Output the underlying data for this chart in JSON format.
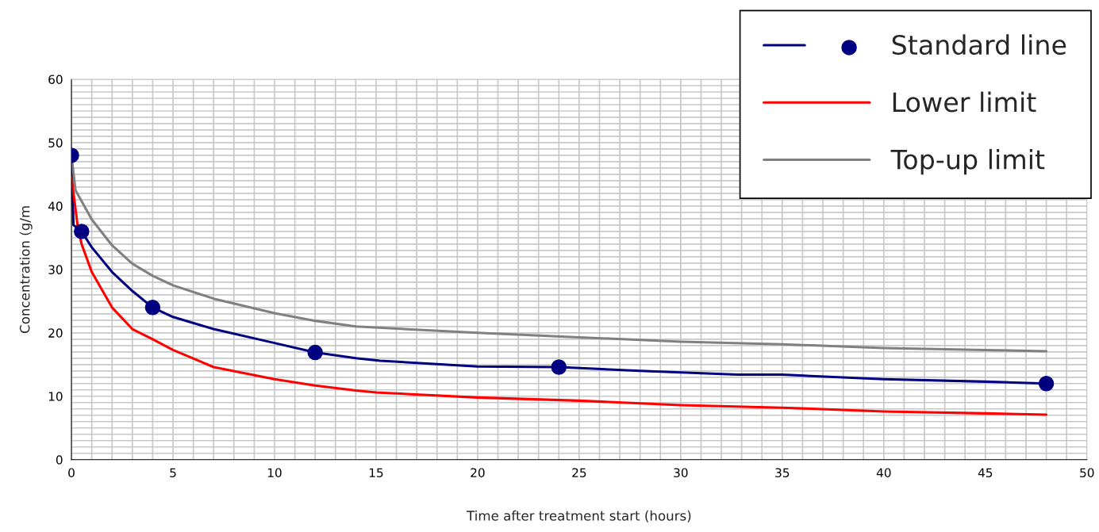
{
  "chart_data": {
    "type": "line",
    "xlabel": "Time after treatment start (hours)",
    "ylabel": "Concentration (g/m",
    "xlim": [
      0,
      50
    ],
    "xticks": [
      0,
      5,
      10,
      15,
      20,
      25,
      30,
      35,
      40,
      45,
      50
    ],
    "ylim": [
      0,
      60
    ],
    "yticks": [
      0,
      10,
      20,
      30,
      40,
      50,
      60
    ],
    "grid": true,
    "legend": "top right",
    "series": [
      {
        "name": "Standard line",
        "color": "#000080",
        "marker": "none",
        "x": [
          0,
          0.1,
          0.5,
          1,
          2,
          3,
          4,
          5,
          7,
          10,
          12,
          14,
          15.2,
          20,
          24,
          28,
          32.8,
          35,
          40,
          45,
          48
        ],
        "values": [
          48,
          37,
          36,
          33.5,
          29.6,
          26.6,
          24,
          22.5,
          20.6,
          18.4,
          16.9,
          16,
          15.6,
          14.7,
          14.6,
          14,
          13.4,
          13.4,
          12.7,
          12.3,
          12
        ]
      },
      {
        "type": "scatter",
        "color": "#000080",
        "marker": "circle",
        "x": [
          0,
          0.5,
          4,
          12,
          24,
          48
        ],
        "values": [
          48,
          36,
          24,
          16.9,
          14.6,
          12
        ]
      },
      {
        "name": "Lower limit",
        "color": "#ff0000",
        "marker": "none",
        "x": [
          0,
          0.3,
          0.5,
          1,
          2,
          3,
          4,
          5,
          7,
          10,
          12,
          14,
          15,
          20,
          25,
          30,
          35,
          40,
          45,
          48
        ],
        "values": [
          44.6,
          37,
          34,
          29.6,
          24,
          20.6,
          19,
          17.3,
          14.6,
          12.7,
          11.7,
          10.9,
          10.6,
          9.8,
          9.3,
          8.6,
          8.2,
          7.6,
          7.3,
          7.1
        ]
      },
      {
        "name": "Top-up limit",
        "color": "#808080",
        "marker": "none",
        "x": [
          0,
          0.2,
          1,
          2,
          3,
          4,
          5,
          7,
          10,
          12,
          14,
          20,
          25,
          30,
          35,
          40,
          45,
          48
        ],
        "values": [
          48,
          42.5,
          37.9,
          33.8,
          30.9,
          29,
          27.5,
          25.4,
          23.1,
          21.9,
          21,
          20,
          19.3,
          18.6,
          18.2,
          17.6,
          17.3,
          17.1
        ]
      }
    ]
  }
}
